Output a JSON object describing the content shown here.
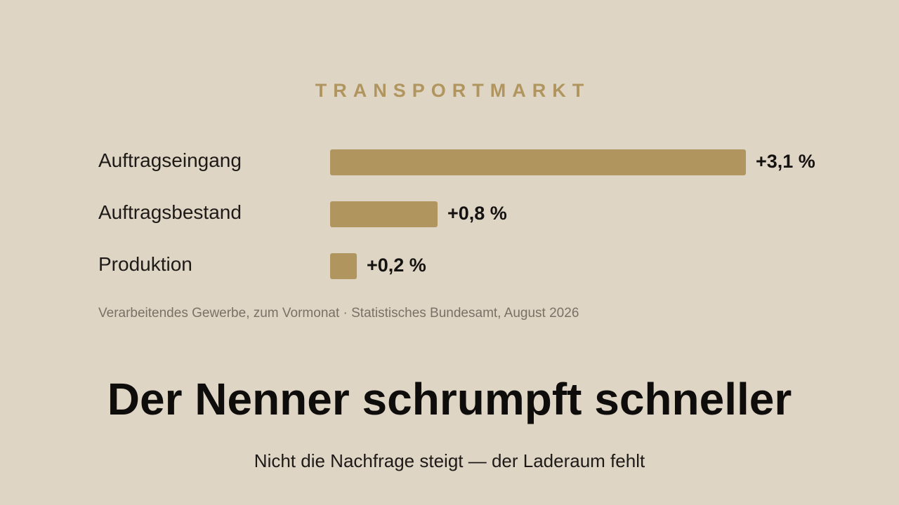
{
  "colors": {
    "background": "#dfd5c5",
    "accent": "#b1955e",
    "text": "#1d1a17",
    "muted": "#7a7166"
  },
  "eyebrow": "TRANSPORTMARKT",
  "chart_data": {
    "type": "bar",
    "orientation": "horizontal",
    "title": "",
    "xlabel": "",
    "ylabel": "",
    "categories": [
      "Auftragseingang",
      "Auftragsbestand",
      "Produktion"
    ],
    "values": [
      3.1,
      0.8,
      0.2
    ],
    "value_labels": [
      "+3,1 %",
      "+0,8 %",
      "+0,2 %"
    ],
    "unit": "%",
    "xlim": [
      0,
      3.1
    ],
    "grid": false,
    "legend": "none"
  },
  "source": "Verarbeitendes Gewerbe, zum Vormonat · Statistisches Bundesamt, August 2026",
  "headline": "Der Nenner schrumpft schneller",
  "subline": "Nicht die Nachfrage steigt — der Laderaum fehlt"
}
